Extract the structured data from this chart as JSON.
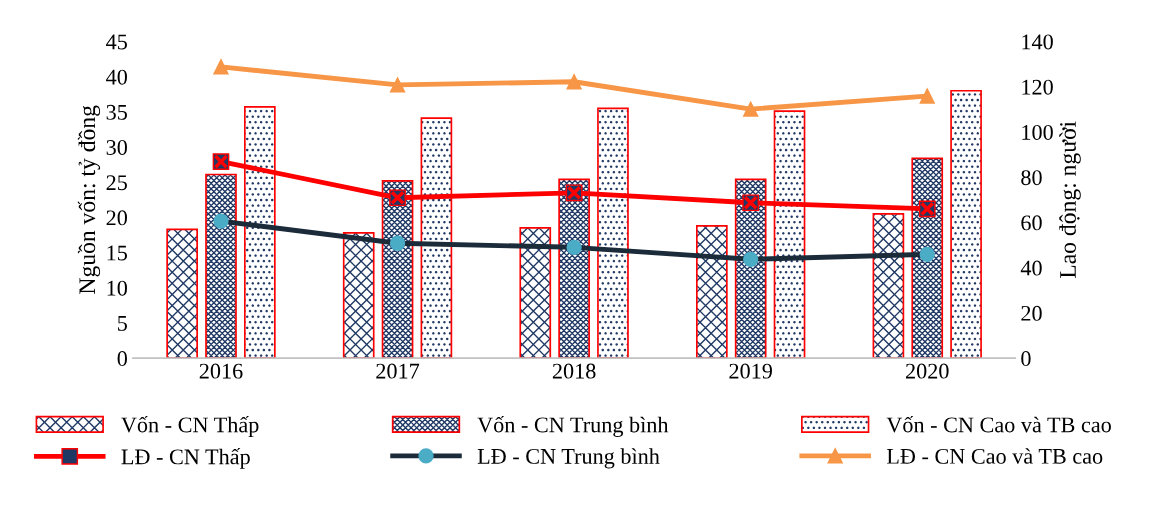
{
  "chart_data": {
    "type": "bar",
    "categories": [
      "2016",
      "2017",
      "2018",
      "2019",
      "2020"
    ],
    "ylabel": "Nguồn vốn: tỷ đồng",
    "y2label": "Lao động: người",
    "ylim": [
      0,
      45
    ],
    "yticks": [
      0,
      5,
      10,
      15,
      20,
      25,
      30,
      35,
      40,
      45
    ],
    "y2lim": [
      0,
      140
    ],
    "y2ticks": [
      0,
      20,
      40,
      60,
      80,
      100,
      120,
      140
    ],
    "grid": false,
    "legend": "bottom",
    "series": [
      {
        "name": "Vốn - CN Thấp",
        "color": "#ff0000",
        "values": [
          18.3,
          17.8,
          18.5,
          18.8,
          20.5
        ]
      },
      {
        "name": "Vốn - CN Trung bình",
        "color": "#ff0000",
        "values": [
          26.1,
          25.2,
          25.4,
          25.4,
          28.4
        ]
      },
      {
        "name": "Vốn - CN Cao và TB cao",
        "color": "#ff0000",
        "values": [
          35.7,
          34.1,
          35.5,
          35.1,
          38.0
        ]
      },
      {
        "name": "LĐ - CN Thấp",
        "type": "line",
        "axis": "y2",
        "color": "#ff0000",
        "marker": "square",
        "values": [
          86.9,
          70.9,
          73.1,
          68.7,
          66.0
        ]
      },
      {
        "name": "LĐ - CN Trung bình",
        "type": "line",
        "axis": "y2",
        "color": "#1c2b3a",
        "marker": "circle",
        "values": [
          60.6,
          50.8,
          49.0,
          43.7,
          45.9
        ]
      },
      {
        "name": "LĐ - CN Cao và TB cao",
        "type": "line",
        "axis": "y2",
        "color": "#f79646",
        "marker": "triangle",
        "values": [
          128.8,
          120.8,
          122.2,
          110.1,
          115.9
        ]
      }
    ]
  }
}
